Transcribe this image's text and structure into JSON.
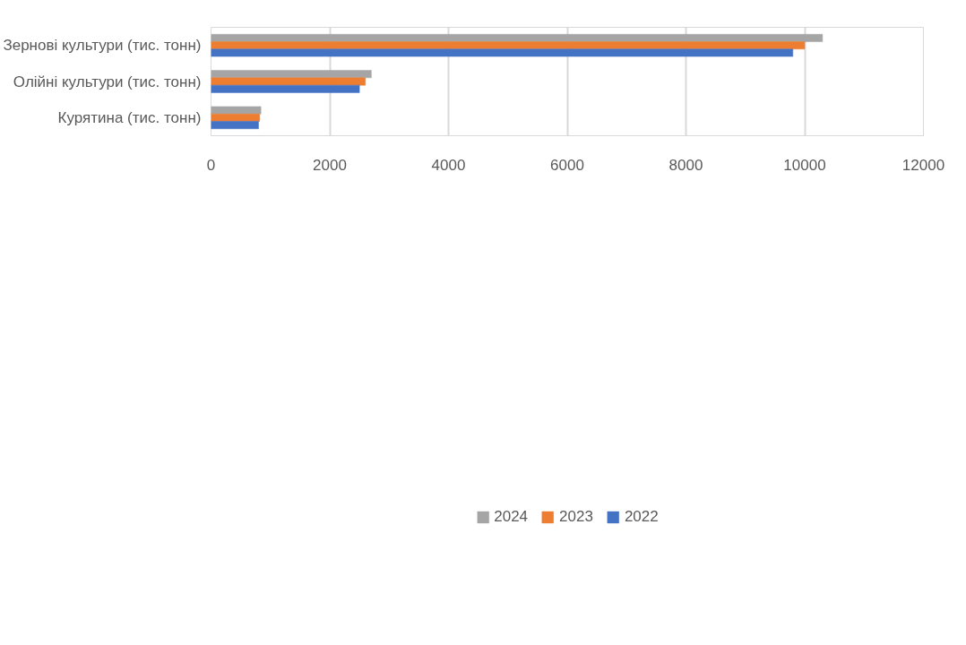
{
  "chart_data": {
    "type": "bar",
    "orientation": "horizontal",
    "categories": [
      "Зернові культури (тис. тонн)",
      "Олійні культури (тис. тонн)",
      "Курятина (тис. тонн)"
    ],
    "series": [
      {
        "name": "2024",
        "color": "#a5a5a5",
        "values": [
          10300,
          2700,
          840
        ]
      },
      {
        "name": "2023",
        "color": "#ed7d31",
        "values": [
          10000,
          2600,
          820
        ]
      },
      {
        "name": "2022",
        "color": "#4472c4",
        "values": [
          9800,
          2500,
          800
        ]
      }
    ],
    "xlim": [
      0,
      12000
    ],
    "xticks": [
      0,
      2000,
      4000,
      6000,
      8000,
      10000,
      12000
    ],
    "grid": "x",
    "legend": "bottom"
  }
}
